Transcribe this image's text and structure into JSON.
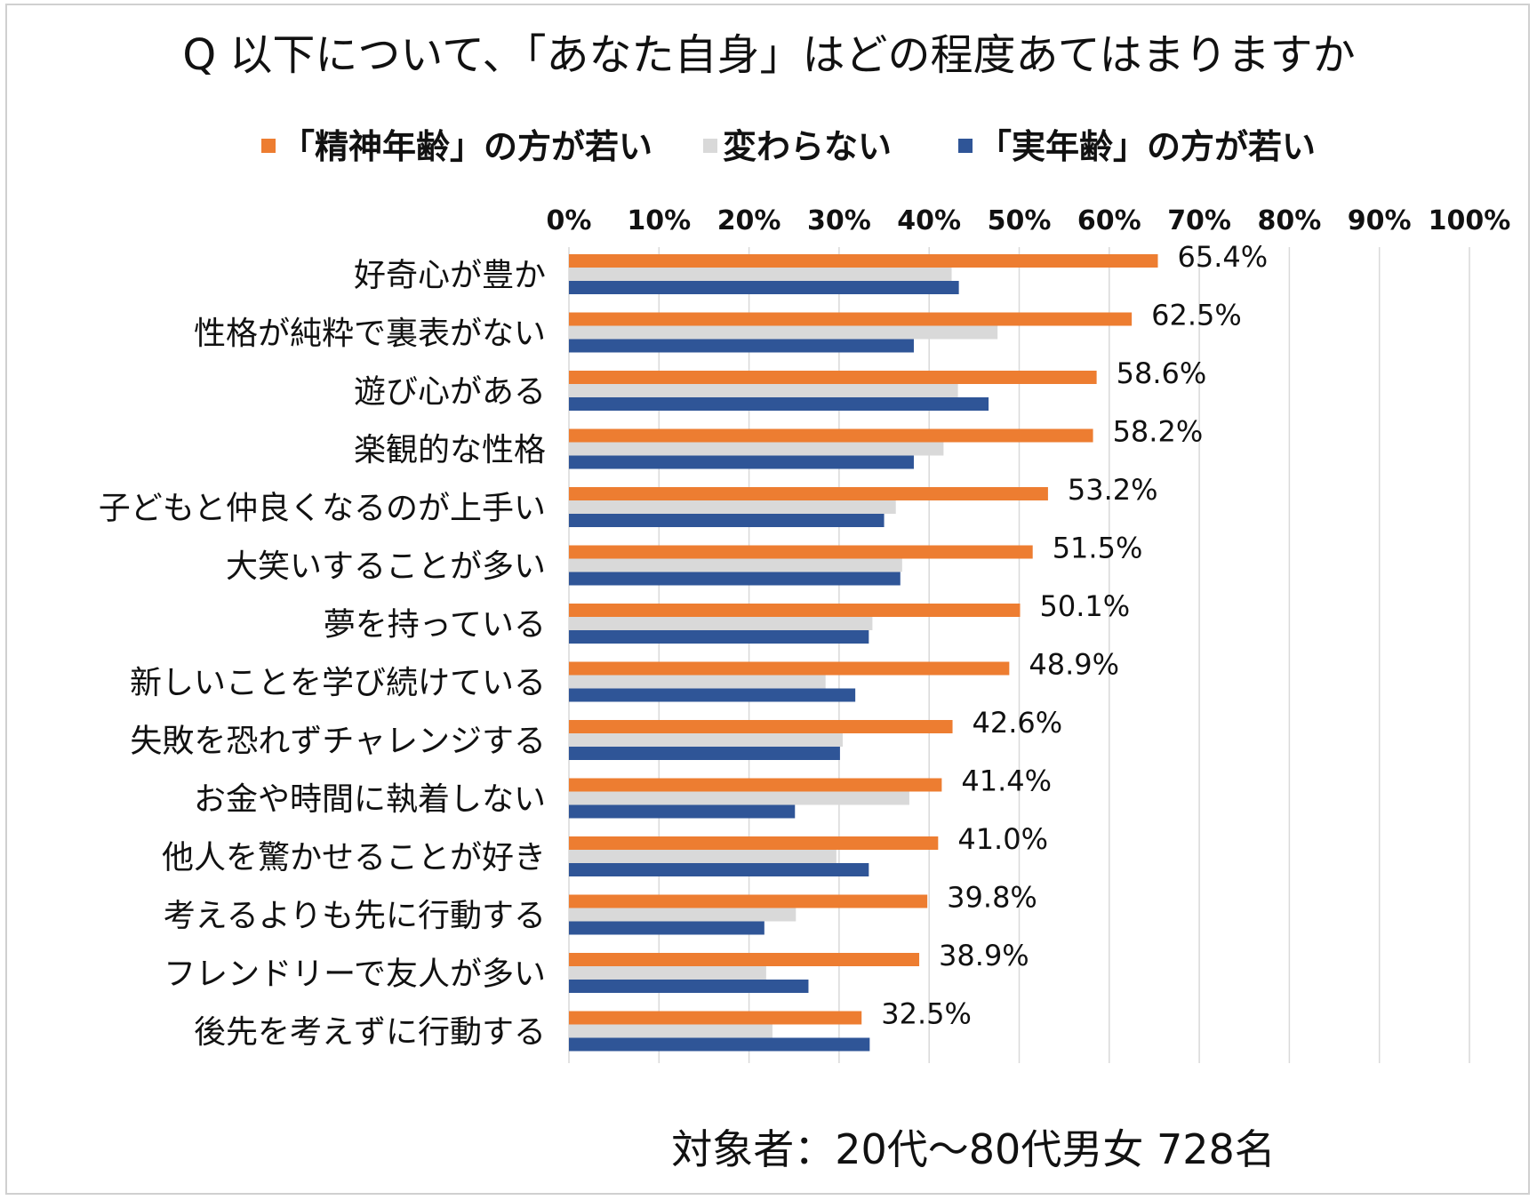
{
  "chart_data": {
    "type": "bar",
    "orientation": "horizontal",
    "title": "Q 以下について、「あなた自身」はどの程度あてはまりますか",
    "footer": "対象者：20代～80代男女 728名",
    "xlim": [
      0,
      100
    ],
    "x_ticks": [
      "0%",
      "10%",
      "20%",
      "30%",
      "40%",
      "50%",
      "60%",
      "70%",
      "80%",
      "90%",
      "100%"
    ],
    "legend_position": "top",
    "grid": true,
    "categories": [
      "好奇心が豊か",
      "性格が純粋で裏表がない",
      "遊び心がある",
      "楽観的な性格",
      "子どもと仲良くなるのが上手い",
      "大笑いすることが多い",
      "夢を持っている",
      "新しいことを学び続けている",
      "失敗を恐れずチャレンジする",
      "お金や時間に執着しない",
      "他人を驚かせることが好き",
      "考えるよりも先に行動する",
      "フレンドリーで友人が多い",
      "後先を考えずに行動する"
    ],
    "series": [
      {
        "name": "「精神年齢」の方が若い",
        "color": "#ed7d31",
        "values": [
          65.4,
          62.5,
          58.6,
          58.2,
          53.2,
          51.5,
          50.1,
          48.9,
          42.6,
          41.4,
          41.0,
          39.8,
          38.9,
          32.5
        ],
        "labels": [
          "65.4%",
          "62.5%",
          "58.6%",
          "58.2%",
          "53.2%",
          "51.5%",
          "50.1%",
          "48.9%",
          "42.6%",
          "41.4%",
          "41.0%",
          "39.8%",
          "38.9%",
          "32.5%"
        ]
      },
      {
        "name": "変わらない",
        "color": "#d9d9d9",
        "values": [
          42.5,
          47.6,
          43.2,
          41.6,
          36.3,
          37.0,
          33.7,
          28.5,
          30.4,
          37.8,
          29.7,
          25.2,
          21.9,
          22.6
        ]
      },
      {
        "name": "「実年齢」の方が若い",
        "color": "#2f5597",
        "values": [
          43.3,
          38.3,
          46.6,
          38.3,
          35.0,
          36.8,
          33.3,
          31.8,
          30.1,
          25.1,
          33.3,
          21.7,
          26.6,
          33.4
        ]
      }
    ]
  }
}
